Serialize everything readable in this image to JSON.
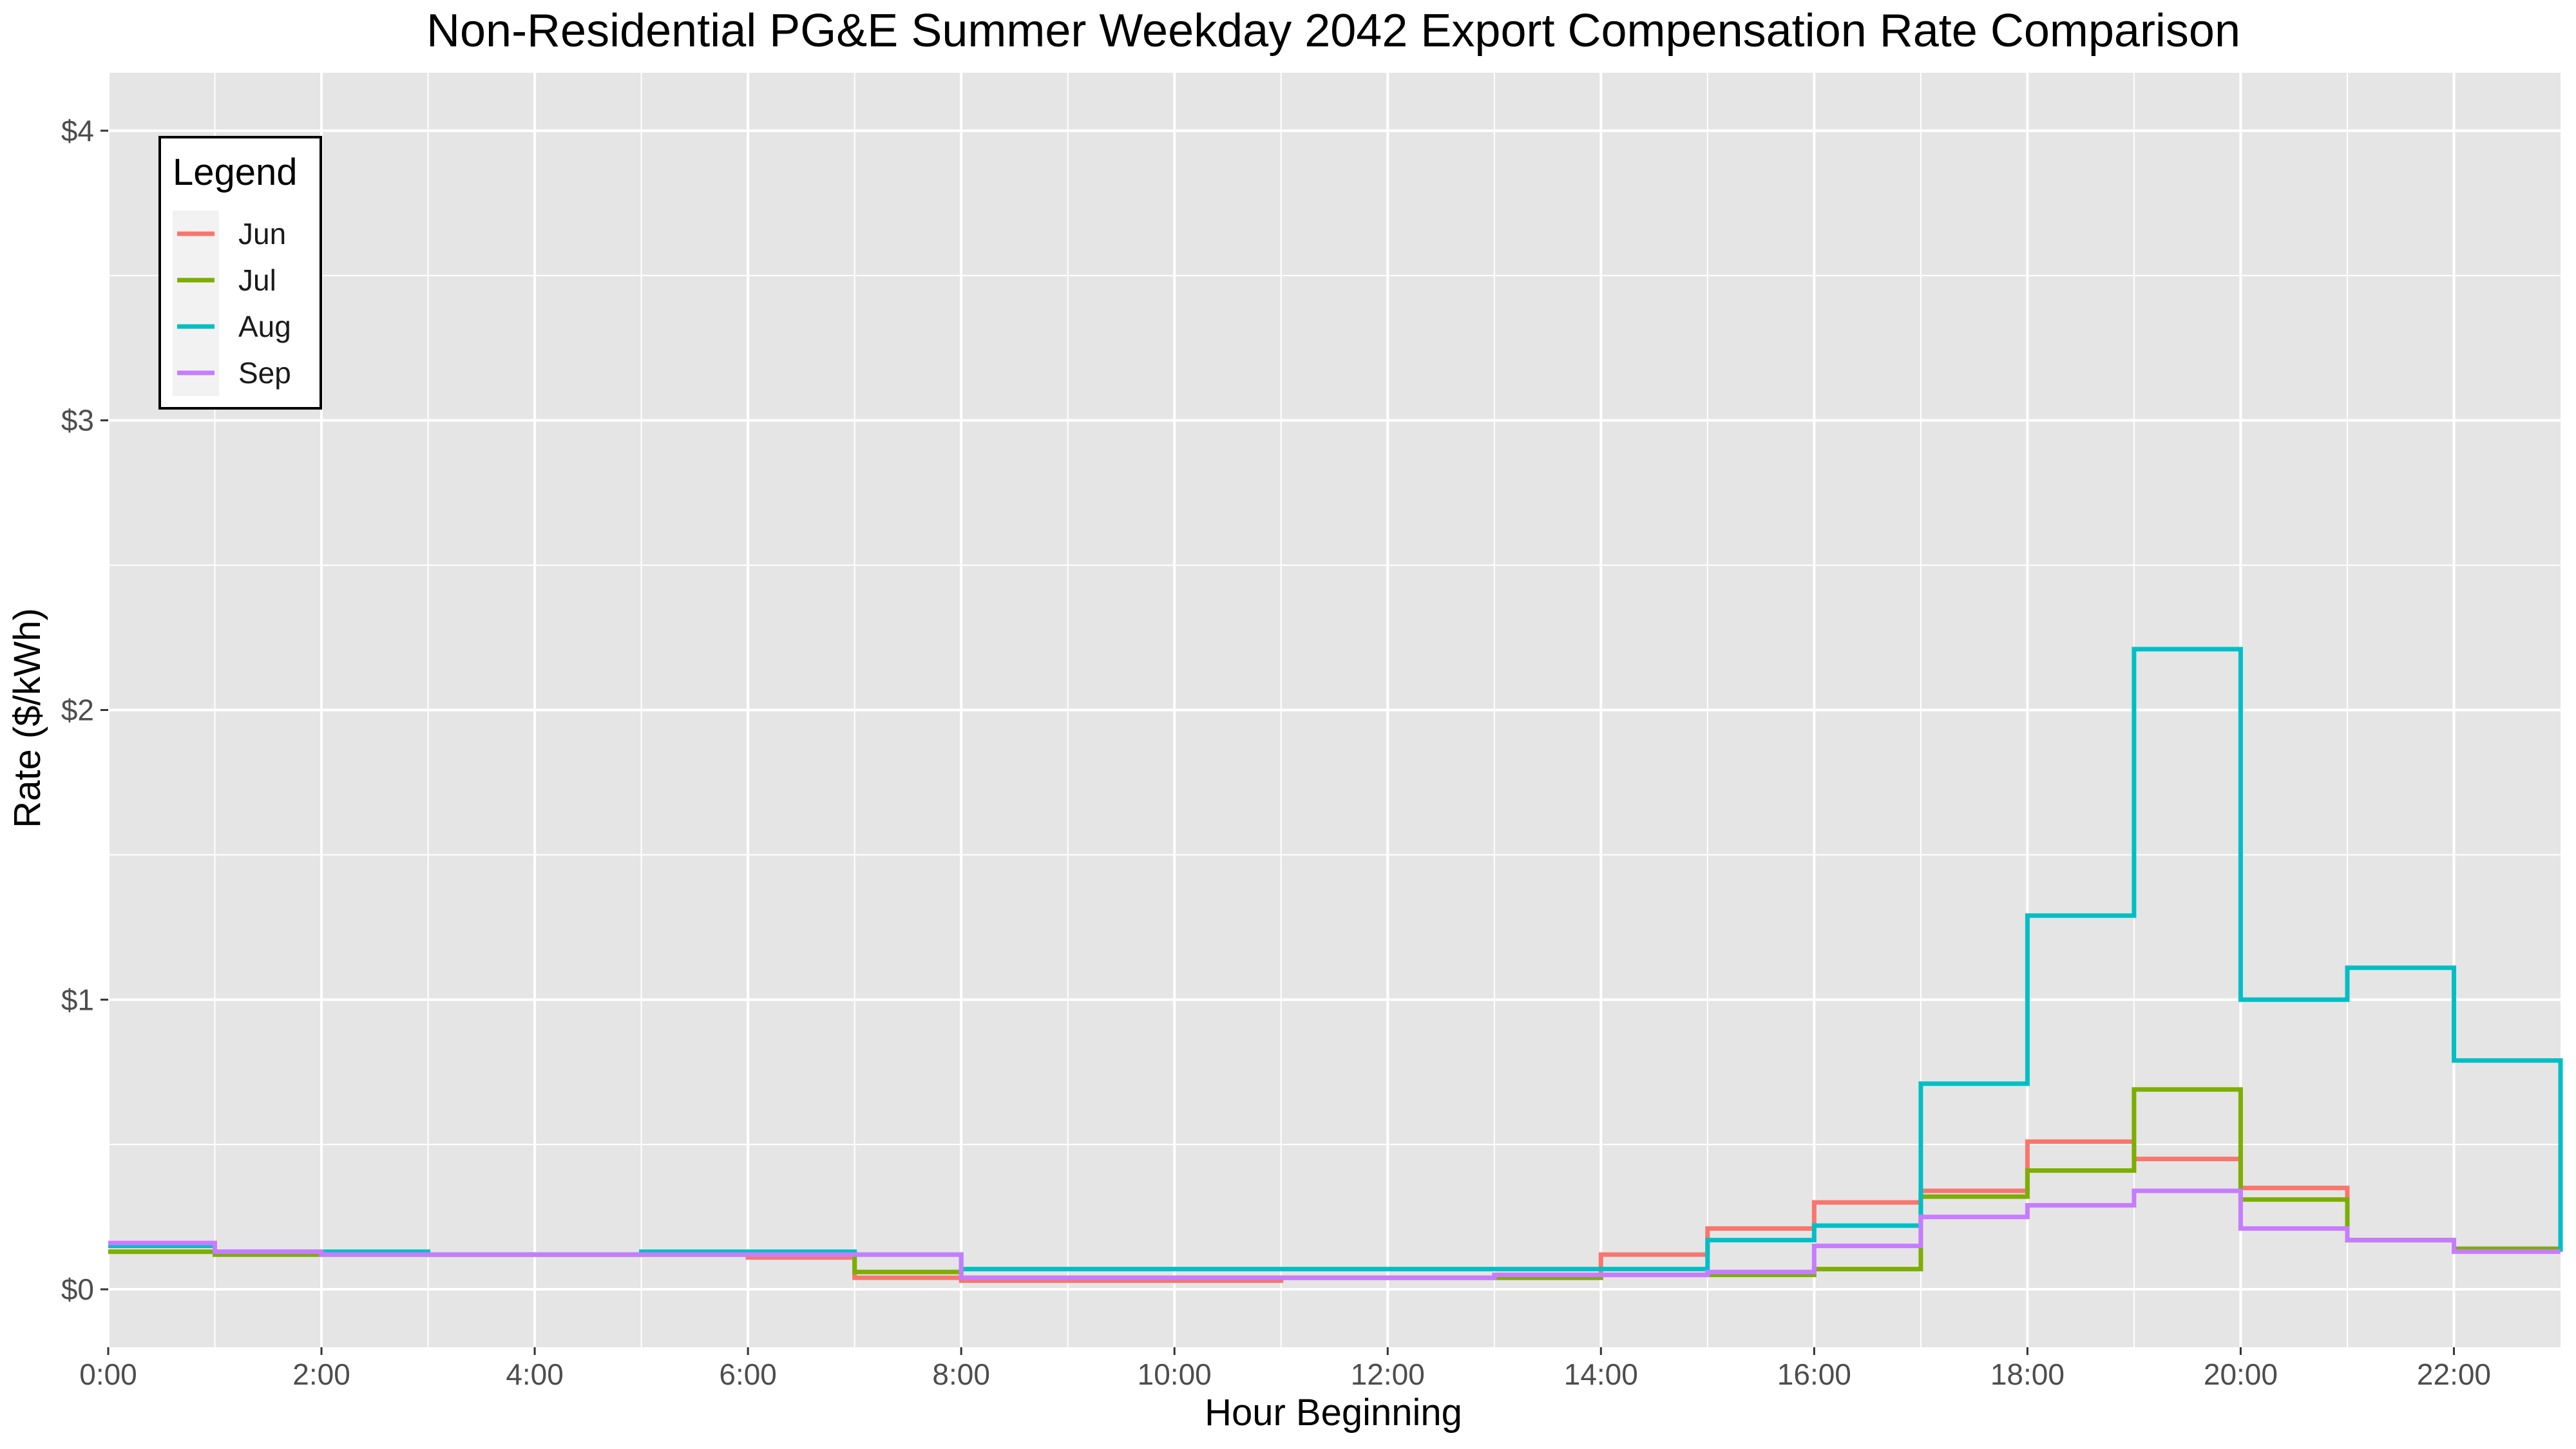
{
  "chart_data": {
    "type": "line",
    "step": true,
    "title": "Non-Residential PG&E Summer Weekday 2042 Export Compensation Rate Comparison",
    "xlabel": "Hour Beginning",
    "ylabel": "Rate ($/kWh)",
    "x": [
      0,
      1,
      2,
      3,
      4,
      5,
      6,
      7,
      8,
      9,
      10,
      11,
      12,
      13,
      14,
      15,
      16,
      17,
      18,
      19,
      20,
      21,
      22,
      23
    ],
    "x_ticks": [
      0,
      2,
      4,
      6,
      8,
      10,
      12,
      14,
      16,
      18,
      20,
      22
    ],
    "x_tick_labels": [
      "0:00",
      "2:00",
      "4:00",
      "6:00",
      "8:00",
      "10:00",
      "12:00",
      "14:00",
      "16:00",
      "18:00",
      "20:00",
      "22:00"
    ],
    "xlim": [
      0,
      23
    ],
    "y_ticks": [
      0,
      1,
      2,
      3,
      4
    ],
    "y_tick_labels": [
      "$0",
      "$1",
      "$2",
      "$3",
      "$4"
    ],
    "ylim": [
      -0.2,
      4.2
    ],
    "grid": true,
    "background": "#e5e5e5",
    "legend": {
      "title": "Legend",
      "position": "top-left",
      "entries": [
        "Jun",
        "Jul",
        "Aug",
        "Sep"
      ]
    },
    "series": [
      {
        "name": "Jun",
        "color": "#F8766D",
        "values": [
          0.13,
          0.12,
          0.12,
          0.12,
          0.12,
          0.12,
          0.11,
          0.04,
          0.03,
          0.03,
          0.03,
          0.04,
          0.04,
          0.04,
          0.12,
          0.21,
          0.3,
          0.34,
          0.51,
          0.45,
          0.35,
          0.17,
          0.14,
          0.13
        ]
      },
      {
        "name": "Jul",
        "color": "#7CAE00",
        "values": [
          0.13,
          0.12,
          0.12,
          0.12,
          0.12,
          0.12,
          0.12,
          0.06,
          0.04,
          0.04,
          0.04,
          0.04,
          0.04,
          0.04,
          0.05,
          0.05,
          0.07,
          0.32,
          0.41,
          0.69,
          0.31,
          0.17,
          0.14,
          0.13
        ]
      },
      {
        "name": "Aug",
        "color": "#00BFC4",
        "values": [
          0.15,
          0.13,
          0.13,
          0.12,
          0.12,
          0.13,
          0.13,
          0.12,
          0.07,
          0.07,
          0.07,
          0.07,
          0.07,
          0.07,
          0.07,
          0.17,
          0.22,
          0.71,
          1.29,
          2.21,
          1.0,
          1.11,
          0.79,
          0.13
        ]
      },
      {
        "name": "Sep",
        "color": "#C77CFF",
        "values": [
          0.16,
          0.13,
          0.12,
          0.12,
          0.12,
          0.12,
          0.12,
          0.12,
          0.04,
          0.04,
          0.04,
          0.04,
          0.04,
          0.05,
          0.05,
          0.06,
          0.15,
          0.25,
          0.29,
          0.34,
          0.21,
          0.17,
          0.13,
          0.13
        ]
      }
    ]
  }
}
